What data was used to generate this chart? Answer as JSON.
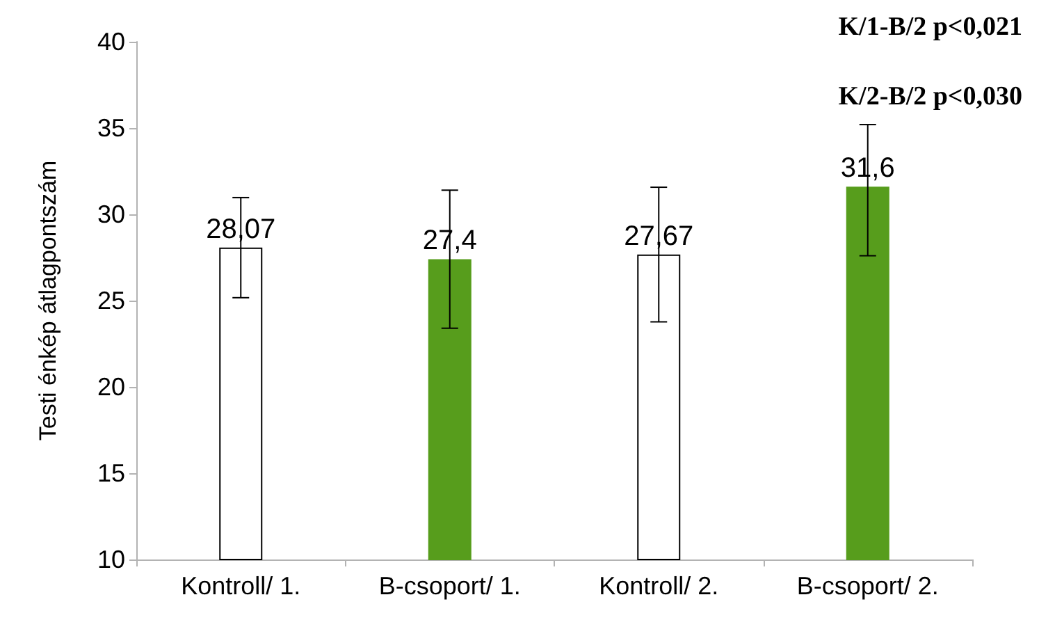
{
  "chart_data": {
    "type": "bar",
    "ylabel": "Testi énkép átlagpontszám",
    "categories": [
      "Kontroll/ 1.",
      "B-csoport/ 1.",
      "Kontroll/ 2.",
      "B-csoport/ 2."
    ],
    "values": [
      28.07,
      27.4,
      27.67,
      31.6
    ],
    "colors": [
      "#ffffff",
      "#579d1c",
      "#ffffff",
      "#579d1c"
    ],
    "errors": [
      2.9,
      4.0,
      3.9,
      [
        27.6,
        35.2
      ]
    ],
    "value_labels": [
      "28,07",
      "27,4",
      "27,67",
      "31,6"
    ],
    "ylim": [
      10,
      40
    ],
    "yticks": [
      10,
      15,
      20,
      25,
      30,
      35,
      40
    ],
    "grid": false,
    "annotations": [
      "K/1-B/2 p<0,021",
      "K/2-B/2 p<0,030"
    ]
  }
}
